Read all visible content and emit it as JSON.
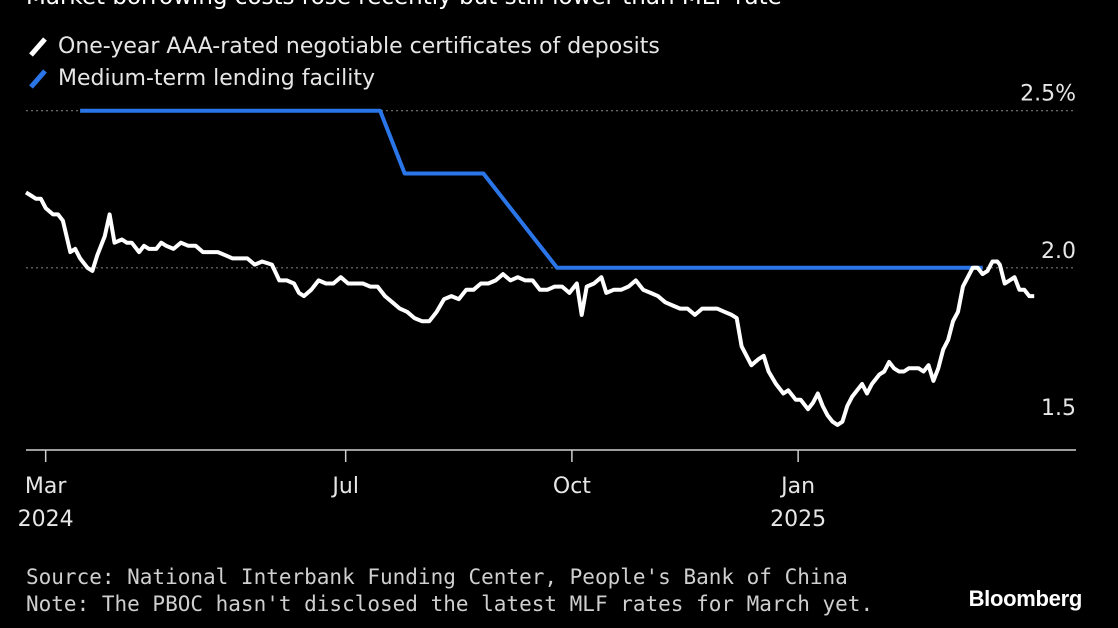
{
  "chart_data": {
    "type": "line",
    "title": "Market borrowing costs rose recently but still lower than MLF rate",
    "legend": [
      "One-year AAA-rated negotiable certificates of deposits",
      "Medium-term lending facility"
    ],
    "legend_position": "top-left",
    "y_ticks": [
      "2.5%",
      "2.0",
      "1.5"
    ],
    "y_tick_values": [
      2.5,
      2.0,
      1.5
    ],
    "ylim": [
      1.42,
      2.55
    ],
    "x_ticks": [
      {
        "label": "Mar",
        "year": "2024",
        "date": "2024-03-01"
      },
      {
        "label": "Jul",
        "year": "",
        "date": "2024-07-01"
      },
      {
        "label": "Oct",
        "year": "",
        "date": "2024-10-01"
      },
      {
        "label": "Jan",
        "year": "2025",
        "date": "2025-01-01"
      }
    ],
    "xlim": [
      "2024-02-22",
      "2025-04-24"
    ],
    "grid": "dotted horizontal",
    "series": [
      {
        "name": "One-year AAA-rated negotiable certificates of deposits",
        "color": "#ffffff",
        "points": [
          [
            "2024-02-22",
            2.24
          ],
          [
            "2024-02-24",
            2.23
          ],
          [
            "2024-02-26",
            2.22
          ],
          [
            "2024-02-28",
            2.22
          ],
          [
            "2024-03-01",
            2.19
          ],
          [
            "2024-03-04",
            2.17
          ],
          [
            "2024-03-06",
            2.17
          ],
          [
            "2024-03-08",
            2.15
          ],
          [
            "2024-03-11",
            2.05
          ],
          [
            "2024-03-13",
            2.06
          ],
          [
            "2024-03-15",
            2.03
          ],
          [
            "2024-03-18",
            2.0
          ],
          [
            "2024-03-20",
            1.99
          ],
          [
            "2024-03-22",
            2.04
          ],
          [
            "2024-03-25",
            2.1
          ],
          [
            "2024-03-27",
            2.17
          ],
          [
            "2024-03-29",
            2.08
          ],
          [
            "2024-04-01",
            2.09
          ],
          [
            "2024-04-03",
            2.08
          ],
          [
            "2024-04-05",
            2.08
          ],
          [
            "2024-04-08",
            2.05
          ],
          [
            "2024-04-10",
            2.07
          ],
          [
            "2024-04-12",
            2.06
          ],
          [
            "2024-04-15",
            2.06
          ],
          [
            "2024-04-17",
            2.08
          ],
          [
            "2024-04-19",
            2.07
          ],
          [
            "2024-04-22",
            2.06
          ],
          [
            "2024-04-25",
            2.08
          ],
          [
            "2024-04-28",
            2.07
          ],
          [
            "2024-05-01",
            2.07
          ],
          [
            "2024-05-04",
            2.05
          ],
          [
            "2024-05-07",
            2.05
          ],
          [
            "2024-05-10",
            2.05
          ],
          [
            "2024-05-13",
            2.04
          ],
          [
            "2024-05-16",
            2.03
          ],
          [
            "2024-05-19",
            2.03
          ],
          [
            "2024-05-22",
            2.03
          ],
          [
            "2024-05-25",
            2.01
          ],
          [
            "2024-05-28",
            2.02
          ],
          [
            "2024-06-01",
            2.01
          ],
          [
            "2024-06-04",
            1.96
          ],
          [
            "2024-06-07",
            1.96
          ],
          [
            "2024-06-10",
            1.95
          ],
          [
            "2024-06-12",
            1.92
          ],
          [
            "2024-06-14",
            1.91
          ],
          [
            "2024-06-17",
            1.93
          ],
          [
            "2024-06-20",
            1.96
          ],
          [
            "2024-06-23",
            1.95
          ],
          [
            "2024-06-26",
            1.95
          ],
          [
            "2024-06-29",
            1.97
          ],
          [
            "2024-07-02",
            1.95
          ],
          [
            "2024-07-05",
            1.95
          ],
          [
            "2024-07-08",
            1.95
          ],
          [
            "2024-07-11",
            1.94
          ],
          [
            "2024-07-14",
            1.94
          ],
          [
            "2024-07-17",
            1.91
          ],
          [
            "2024-07-20",
            1.89
          ],
          [
            "2024-07-23",
            1.87
          ],
          [
            "2024-07-26",
            1.86
          ],
          [
            "2024-07-29",
            1.84
          ],
          [
            "2024-08-01",
            1.83
          ],
          [
            "2024-08-04",
            1.83
          ],
          [
            "2024-08-07",
            1.86
          ],
          [
            "2024-08-10",
            1.9
          ],
          [
            "2024-08-13",
            1.91
          ],
          [
            "2024-08-16",
            1.9
          ],
          [
            "2024-08-19",
            1.93
          ],
          [
            "2024-08-22",
            1.93
          ],
          [
            "2024-08-25",
            1.95
          ],
          [
            "2024-08-28",
            1.95
          ],
          [
            "2024-08-31",
            1.96
          ],
          [
            "2024-09-03",
            1.98
          ],
          [
            "2024-09-06",
            1.96
          ],
          [
            "2024-09-09",
            1.97
          ],
          [
            "2024-09-12",
            1.96
          ],
          [
            "2024-09-15",
            1.96
          ],
          [
            "2024-09-18",
            1.93
          ],
          [
            "2024-09-21",
            1.93
          ],
          [
            "2024-09-24",
            1.94
          ],
          [
            "2024-09-27",
            1.94
          ],
          [
            "2024-09-30",
            1.92
          ],
          [
            "2024-10-03",
            1.95
          ],
          [
            "2024-10-05",
            1.85
          ],
          [
            "2024-10-07",
            1.94
          ],
          [
            "2024-10-10",
            1.95
          ],
          [
            "2024-10-13",
            1.97
          ],
          [
            "2024-10-15",
            1.92
          ],
          [
            "2024-10-18",
            1.93
          ],
          [
            "2024-10-21",
            1.93
          ],
          [
            "2024-10-24",
            1.94
          ],
          [
            "2024-10-27",
            1.96
          ],
          [
            "2024-10-30",
            1.93
          ],
          [
            "2024-11-02",
            1.92
          ],
          [
            "2024-11-05",
            1.91
          ],
          [
            "2024-11-08",
            1.89
          ],
          [
            "2024-11-11",
            1.88
          ],
          [
            "2024-11-14",
            1.87
          ],
          [
            "2024-11-17",
            1.87
          ],
          [
            "2024-11-20",
            1.85
          ],
          [
            "2024-11-23",
            1.87
          ],
          [
            "2024-11-26",
            1.87
          ],
          [
            "2024-11-29",
            1.87
          ],
          [
            "2024-12-02",
            1.86
          ],
          [
            "2024-12-05",
            1.85
          ],
          [
            "2024-12-07",
            1.84
          ],
          [
            "2024-12-09",
            1.75
          ],
          [
            "2024-12-11",
            1.72
          ],
          [
            "2024-12-13",
            1.69
          ],
          [
            "2024-12-16",
            1.71
          ],
          [
            "2024-12-18",
            1.72
          ],
          [
            "2024-12-20",
            1.67
          ],
          [
            "2024-12-23",
            1.63
          ],
          [
            "2024-12-26",
            1.6
          ],
          [
            "2024-12-28",
            1.61
          ],
          [
            "2024-12-31",
            1.58
          ],
          [
            "2025-01-02",
            1.58
          ],
          [
            "2025-01-05",
            1.55
          ],
          [
            "2025-01-07",
            1.57
          ],
          [
            "2025-01-09",
            1.6
          ],
          [
            "2025-01-11",
            1.56
          ],
          [
            "2025-01-13",
            1.53
          ],
          [
            "2025-01-15",
            1.51
          ],
          [
            "2025-01-17",
            1.5
          ],
          [
            "2025-01-19",
            1.51
          ],
          [
            "2025-01-21",
            1.56
          ],
          [
            "2025-01-23",
            1.59
          ],
          [
            "2025-01-25",
            1.61
          ],
          [
            "2025-01-27",
            1.63
          ],
          [
            "2025-01-29",
            1.6
          ],
          [
            "2025-01-31",
            1.63
          ],
          [
            "2025-02-03",
            1.66
          ],
          [
            "2025-02-05",
            1.67
          ],
          [
            "2025-02-07",
            1.7
          ],
          [
            "2025-02-09",
            1.68
          ],
          [
            "2025-02-11",
            1.67
          ],
          [
            "2025-02-13",
            1.67
          ],
          [
            "2025-02-15",
            1.68
          ],
          [
            "2025-02-17",
            1.68
          ],
          [
            "2025-02-19",
            1.68
          ],
          [
            "2025-02-21",
            1.67
          ],
          [
            "2025-02-23",
            1.69
          ],
          [
            "2025-02-25",
            1.64
          ],
          [
            "2025-02-27",
            1.68
          ],
          [
            "2025-03-01",
            1.74
          ],
          [
            "2025-03-03",
            1.77
          ],
          [
            "2025-03-05",
            1.83
          ],
          [
            "2025-03-07",
            1.86
          ],
          [
            "2025-03-09",
            1.94
          ],
          [
            "2025-03-11",
            1.97
          ],
          [
            "2025-03-13",
            2.0
          ],
          [
            "2025-03-15",
            2.0
          ],
          [
            "2025-03-17",
            1.98
          ],
          [
            "2025-03-19",
            1.99
          ],
          [
            "2025-03-21",
            2.02
          ],
          [
            "2025-03-23",
            2.02
          ],
          [
            "2025-03-24",
            2.01
          ],
          [
            "2025-03-26",
            1.95
          ],
          [
            "2025-03-28",
            1.96
          ],
          [
            "2025-03-30",
            1.97
          ],
          [
            "2025-04-01",
            1.93
          ],
          [
            "2025-04-03",
            1.93
          ],
          [
            "2025-04-05",
            1.91
          ],
          [
            "2025-04-07",
            1.91
          ]
        ]
      },
      {
        "name": "Medium-term lending facility",
        "color": "#2a75e8",
        "points": [
          [
            "2024-03-15",
            2.5
          ],
          [
            "2024-07-15",
            2.5
          ],
          [
            "2024-07-25",
            2.3
          ],
          [
            "2024-08-26",
            2.3
          ],
          [
            "2024-09-25",
            2.0
          ],
          [
            "2025-03-17",
            2.0
          ]
        ]
      }
    ]
  },
  "footer": {
    "source": "Source: National Interbank Funding Center, People's Bank of China",
    "note": "Note: The PBOC hasn't disclosed the latest MLF rates for March yet."
  },
  "brand": "Bloomberg"
}
